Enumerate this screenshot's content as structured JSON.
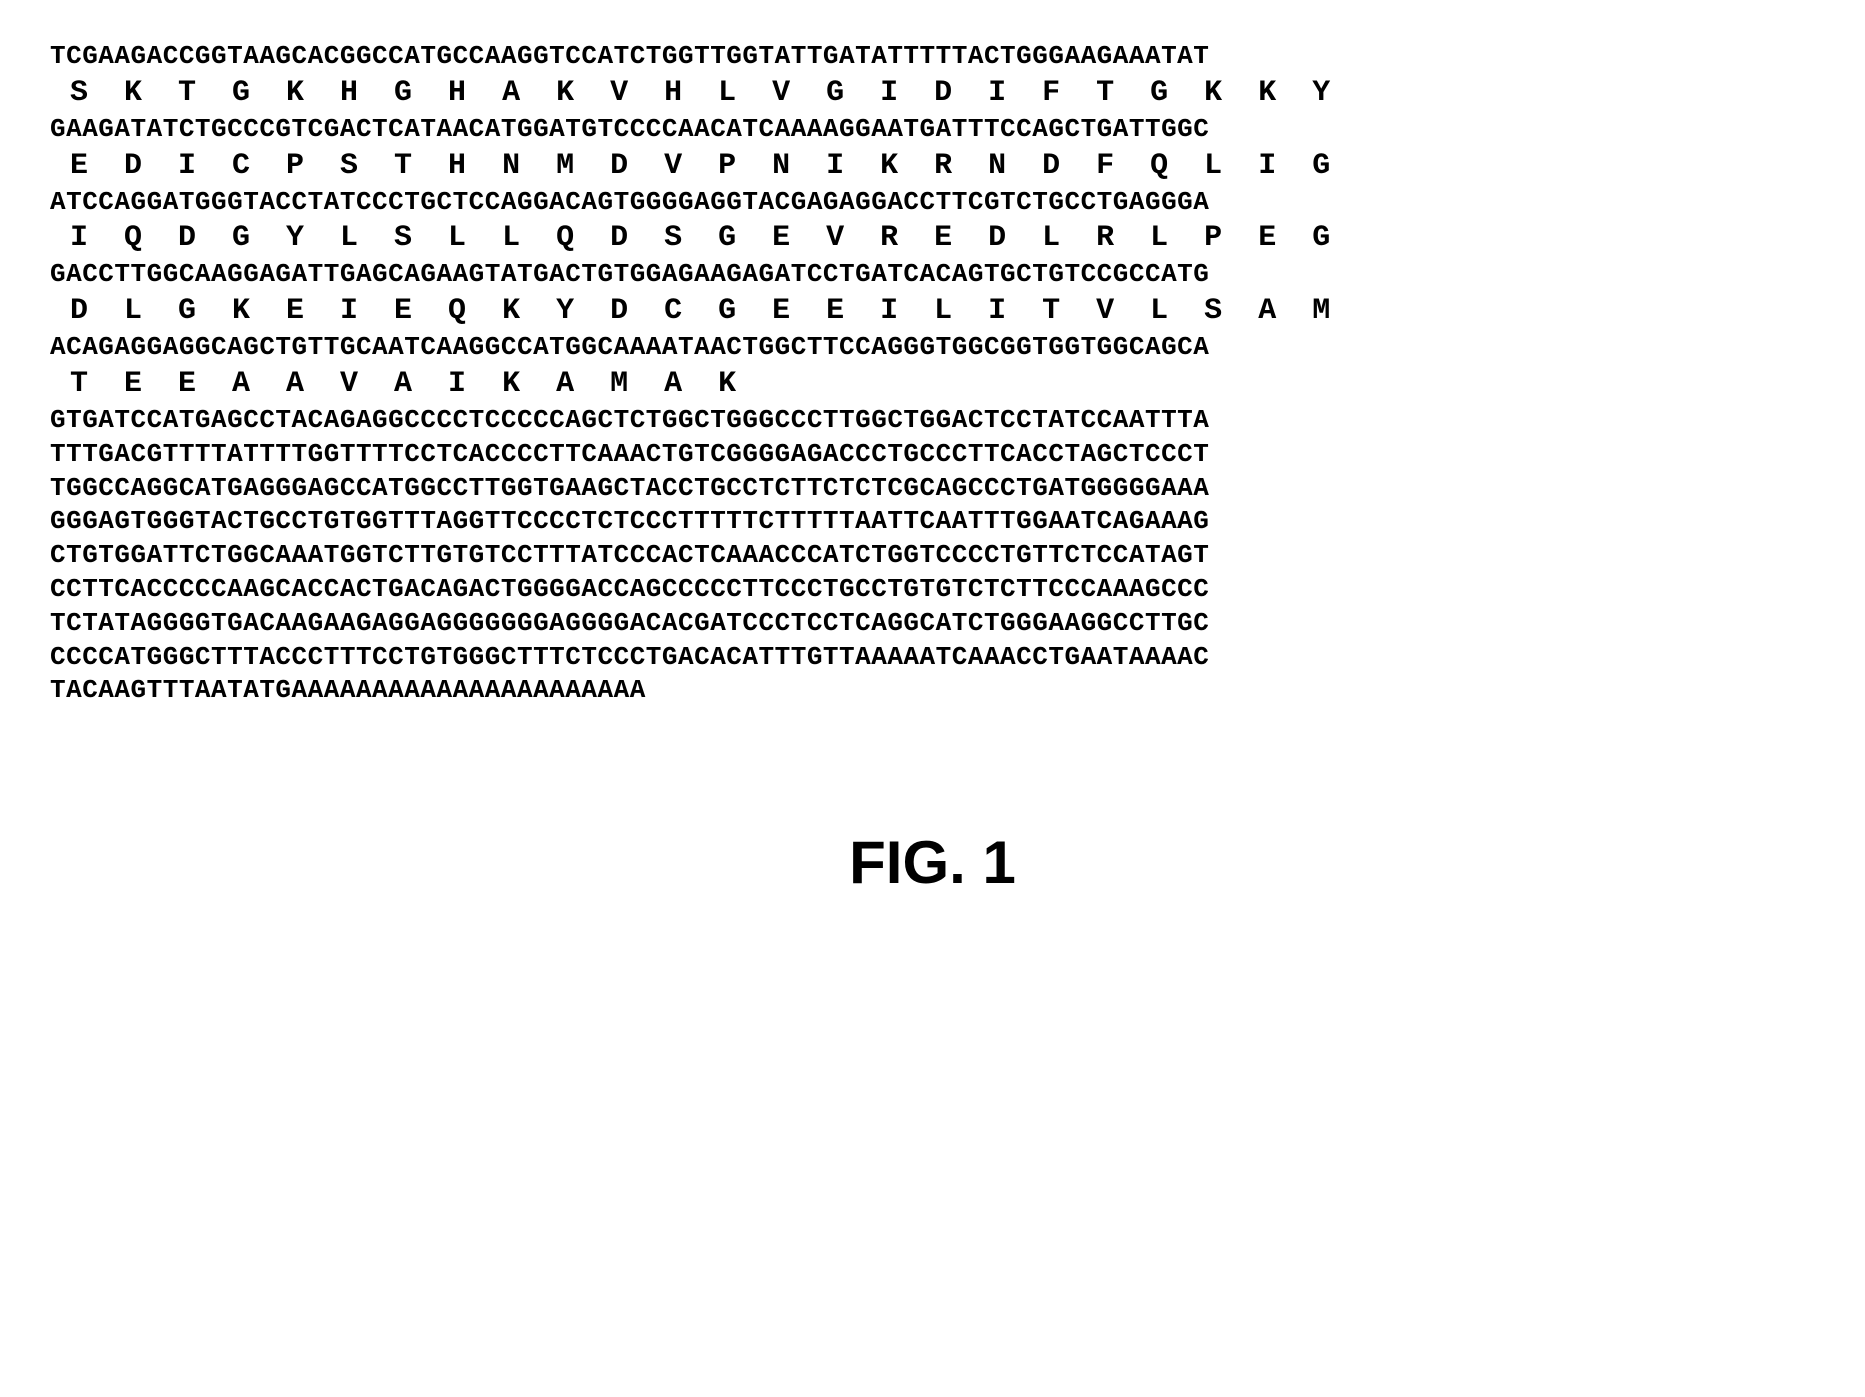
{
  "sequence_figure": {
    "font_family": "Courier New",
    "dna_fontsize": 26,
    "aa_fontsize": 30,
    "text_color": "#000000",
    "background_color": "#ffffff",
    "font_weight": "bold",
    "lines": [
      {
        "type": "dna",
        "text": "TCGAAGACCGGTAAGCACGGCCATGCCAAGGTCCATCTGGTTGGTATTGATATTTTTACTGGGAAGAAATAT"
      },
      {
        "type": "aa",
        "text": "S  K  T  G  K  H  G  H  A  K  V  H  L  V  G  I  D  I  F  T  G  K  K  Y"
      },
      {
        "type": "dna",
        "text": "GAAGATATCTGCCCGTCGACTCATAACATGGATGTCCCCAACATCAAAAGGAATGATTTCCAGCTGATTGGC"
      },
      {
        "type": "aa",
        "text": "E  D  I  C  P  S  T  H  N  M  D  V  P  N  I  K  R  N  D  F  Q  L  I  G"
      },
      {
        "type": "dna",
        "text": "ATCCAGGATGGGTACCTATCCCTGCTCCAGGACAGTGGGGAGGTACGAGAGGACCTTCGTCTGCCTGAGGGA"
      },
      {
        "type": "aa",
        "text": "I  Q  D  G  Y  L  S  L  L  Q  D  S  G  E  V  R  E  D  L  R  L  P  E  G"
      },
      {
        "type": "dna",
        "text": "GACCTTGGCAAGGAGATTGAGCAGAAGTATGACTGTGGAGAAGAGATCCTGATCACAGTGCTGTCCGCCATG"
      },
      {
        "type": "aa",
        "text": "D  L  G  K  E  I  E  Q  K  Y  D  C  G  E  E  I  L  I  T  V  L  S  A  M"
      },
      {
        "type": "dna",
        "text": "ACAGAGGAGGCAGCTGTTGCAATCAAGGCCATGGCAAAATAACTGGCTTCCAGGGTGGCGGTGGTGGCAGCA"
      },
      {
        "type": "aa",
        "text": "T  E  E  A  A  V  A  I  K  A  M  A  K"
      },
      {
        "type": "dna",
        "text": "GTGATCCATGAGCCTACAGAGGCCCCTCCCCCAGCTCTGGCTGGGCCCTTGGCTGGACTCCTATCCAATTTA"
      },
      {
        "type": "dna",
        "text": "TTTGACGTTTTATTTTGGTTTTCCTCACCCCTTCAAACTGTCGGGGAGACCCTGCCCTTCACCTAGCTCCCT"
      },
      {
        "type": "dna",
        "text": "TGGCCAGGCATGAGGGAGCCATGGCCTTGGTGAAGCTACCTGCCTCTTCTCTCGCAGCCCTGATGGGGGAAA"
      },
      {
        "type": "dna",
        "text": "GGGAGTGGGTACTGCCTGTGGTTTAGGTTCCCCTCTCCCTTTTTCTTTTTAATTCAATTTGGAATCAGAAAG"
      },
      {
        "type": "dna",
        "text": "CTGTGGATTCTGGCAAATGGTCTTGTGTCCTTTATCCCACTCAAACCCATCTGGTCCCCTGTTCTCCATAGT"
      },
      {
        "type": "dna",
        "text": "CCTTCACCCCCAAGCACCACTGACAGACTGGGGACCAGCCCCCTTCCCTGCCTGTGTCTCTTCCCAAAGCCC"
      },
      {
        "type": "dna",
        "text": "TCTATAGGGGTGACAAGAAGAGGAGGGGGGGAGGGGACACGATCCCTCCTCAGGCATCTGGGAAGGCCTTGC"
      },
      {
        "type": "dna",
        "text": "CCCCATGGGCTTTACCCTTTCCTGTGGGCTTTCTCCCTGACACATTTGTTAAAAATCAAACCTGAATAAAAC"
      },
      {
        "type": "dna",
        "text": "TACAAGTTTAATATGAAAAAAAAAAAAAAAAAAAAAA"
      }
    ]
  },
  "figure_label": {
    "text": "FIG. 1",
    "fontsize": 60,
    "font_family": "Arial",
    "font_weight": "bold",
    "color": "#000000"
  }
}
